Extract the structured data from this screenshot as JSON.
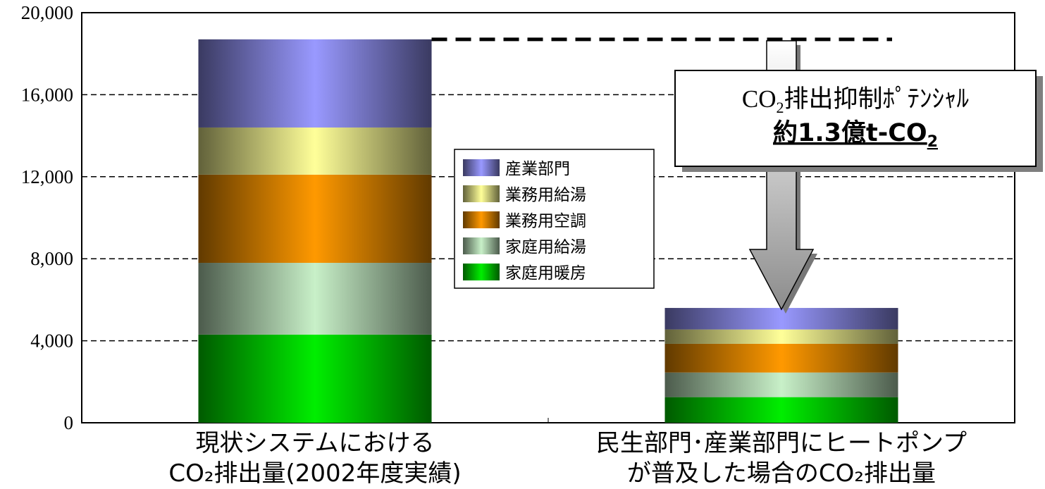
{
  "chart_data": {
    "type": "bar",
    "stacked": true,
    "categories": [
      [
        "現状システムにおける",
        "CO₂排出量(2002年度実績)"
      ],
      [
        "民生部門･産業部門にヒートポンプ",
        "が普及した場合のCO₂排出量"
      ]
    ],
    "ylim": [
      0,
      20000
    ],
    "yticks": [
      "0",
      "4,000",
      "8,000",
      "12,000",
      "16,000",
      "20,000"
    ],
    "ytick_values": [
      0,
      4000,
      8000,
      12000,
      16000,
      20000
    ],
    "grid": true,
    "legend_position": "center",
    "series": [
      {
        "name": "家庭用暖房",
        "color": "#00ee00",
        "values": [
          4300,
          1250
        ]
      },
      {
        "name": "家庭用給湯",
        "color": "#c8f0c8",
        "values": [
          3500,
          1200
        ]
      },
      {
        "name": "業務用空調",
        "color": "#ff9900",
        "values": [
          4300,
          1400
        ]
      },
      {
        "name": "業務用給湯",
        "color": "#ffff99",
        "values": [
          2300,
          700
        ]
      },
      {
        "name": "産業部門",
        "color": "#9999ff",
        "values": [
          4300,
          1050
        ]
      }
    ],
    "annotation": {
      "line1_main": "CO",
      "line1_sub": "2",
      "line1_rest": "排出抑制ﾎﾟﾃﾝｼｬﾙ",
      "line2_main": "約1.3億t-CO",
      "line2_sub": "2"
    }
  }
}
